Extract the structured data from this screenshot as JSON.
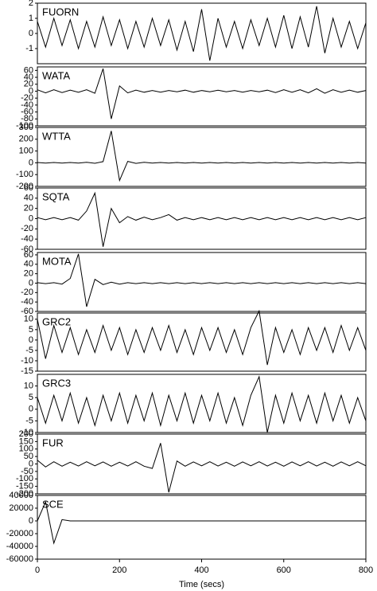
{
  "chart_data": [
    {
      "type": "line",
      "title": "FUORN",
      "xlim": [
        0,
        800
      ],
      "ylim": [
        -2,
        2
      ],
      "yticks": [
        -1,
        0,
        1,
        2
      ],
      "color": "#000000",
      "x": [
        0,
        20,
        40,
        60,
        80,
        100,
        120,
        140,
        160,
        180,
        200,
        220,
        240,
        260,
        280,
        300,
        320,
        340,
        360,
        380,
        400,
        420,
        440,
        460,
        480,
        500,
        520,
        540,
        560,
        580,
        600,
        620,
        640,
        660,
        680,
        700,
        720,
        740,
        760,
        780,
        800
      ],
      "values": [
        0.8,
        -0.9,
        1.0,
        -0.8,
        0.9,
        -1.0,
        0.8,
        -0.9,
        1.1,
        -0.8,
        0.9,
        -1.0,
        0.8,
        -0.9,
        1.0,
        -0.8,
        0.9,
        -1.1,
        0.8,
        -1.2,
        1.6,
        -1.8,
        1.0,
        -0.9,
        0.8,
        -1.0,
        0.9,
        -0.8,
        1.0,
        -0.9,
        1.2,
        -1.0,
        1.1,
        -0.9,
        1.8,
        -1.3,
        1.0,
        -0.9,
        0.8,
        -1.0,
        0.7
      ]
    },
    {
      "type": "line",
      "title": "WATA",
      "xlim": [
        0,
        800
      ],
      "ylim": [
        -100,
        70
      ],
      "yticks": [
        -100,
        -80,
        -60,
        -40,
        -20,
        0,
        20,
        40,
        60
      ],
      "color": "#000000",
      "x": [
        0,
        20,
        40,
        60,
        80,
        100,
        120,
        140,
        160,
        180,
        200,
        220,
        240,
        260,
        280,
        300,
        320,
        340,
        360,
        380,
        400,
        420,
        440,
        460,
        480,
        500,
        520,
        540,
        560,
        580,
        600,
        620,
        640,
        660,
        680,
        700,
        720,
        740,
        760,
        780,
        800
      ],
      "values": [
        4,
        -5,
        4,
        -4,
        3,
        -3,
        4,
        -6,
        65,
        -80,
        15,
        -5,
        3,
        -3,
        2,
        -3,
        2,
        -2,
        3,
        -3,
        2,
        -2,
        3,
        -2,
        2,
        -3,
        2,
        -2,
        3,
        -4,
        4,
        -3,
        4,
        -5,
        7,
        -6,
        4,
        -3,
        3,
        -3,
        2
      ]
    },
    {
      "type": "line",
      "title": "WTTA",
      "xlim": [
        0,
        800
      ],
      "ylim": [
        -200,
        300
      ],
      "yticks": [
        -200,
        -100,
        0,
        100,
        200,
        300
      ],
      "color": "#000000",
      "x": [
        0,
        20,
        40,
        60,
        80,
        100,
        120,
        140,
        160,
        180,
        200,
        220,
        240,
        260,
        280,
        300,
        320,
        340,
        360,
        380,
        400,
        420,
        440,
        460,
        480,
        500,
        520,
        540,
        560,
        580,
        600,
        620,
        640,
        660,
        680,
        700,
        720,
        740,
        760,
        780,
        800
      ],
      "values": [
        3,
        -3,
        3,
        -3,
        3,
        -3,
        4,
        -4,
        10,
        270,
        -150,
        12,
        -5,
        4,
        -3,
        3,
        -3,
        3,
        -3,
        3,
        -3,
        3,
        -3,
        3,
        -3,
        3,
        -3,
        3,
        -3,
        3,
        -3,
        3,
        -3,
        3,
        -3,
        3,
        -3,
        3,
        -3,
        3,
        -3
      ]
    },
    {
      "type": "line",
      "title": "SQTA",
      "xlim": [
        0,
        800
      ],
      "ylim": [
        -60,
        60
      ],
      "yticks": [
        -60,
        -40,
        -20,
        0,
        20,
        40,
        60
      ],
      "color": "#000000",
      "x": [
        0,
        20,
        40,
        60,
        80,
        100,
        120,
        140,
        160,
        180,
        200,
        220,
        240,
        260,
        280,
        300,
        320,
        340,
        360,
        380,
        400,
        420,
        440,
        460,
        480,
        500,
        520,
        540,
        560,
        580,
        600,
        620,
        640,
        660,
        680,
        700,
        720,
        740,
        760,
        780,
        800
      ],
      "values": [
        2,
        -2,
        2,
        -2,
        2,
        -3,
        15,
        50,
        -55,
        20,
        -8,
        4,
        -3,
        3,
        -2,
        2,
        8,
        -3,
        2,
        -2,
        2,
        -2,
        2,
        -2,
        2,
        -2,
        2,
        -2,
        2,
        -2,
        2,
        -2,
        2,
        -2,
        2,
        -2,
        2,
        -2,
        2,
        -2,
        2
      ]
    },
    {
      "type": "line",
      "title": "MOTA",
      "xlim": [
        0,
        800
      ],
      "ylim": [
        -60,
        65
      ],
      "yticks": [
        -60,
        -40,
        -20,
        0,
        20,
        40,
        60
      ],
      "color": "#000000",
      "x": [
        0,
        20,
        40,
        60,
        80,
        100,
        120,
        140,
        160,
        180,
        200,
        220,
        240,
        260,
        280,
        300,
        320,
        340,
        360,
        380,
        400,
        420,
        440,
        460,
        480,
        500,
        520,
        540,
        560,
        580,
        600,
        620,
        640,
        660,
        680,
        700,
        720,
        740,
        760,
        780,
        800
      ],
      "values": [
        1,
        -1,
        1,
        -2,
        10,
        62,
        -50,
        8,
        -3,
        2,
        -2,
        1,
        -1,
        1,
        -1,
        1,
        -1,
        1,
        -1,
        1,
        -1,
        1,
        -1,
        1,
        -1,
        1,
        -1,
        1,
        -1,
        1,
        -1,
        1,
        -1,
        1,
        -1,
        1,
        -1,
        1,
        -1,
        1,
        -1
      ]
    },
    {
      "type": "line",
      "title": "GRC2",
      "xlim": [
        0,
        800
      ],
      "ylim": [
        -15,
        13
      ],
      "yticks": [
        -15,
        -10,
        -5,
        0,
        5,
        10
      ],
      "color": "#000000",
      "x": [
        0,
        20,
        40,
        60,
        80,
        100,
        120,
        140,
        160,
        180,
        200,
        220,
        240,
        260,
        280,
        300,
        320,
        340,
        360,
        380,
        400,
        420,
        440,
        460,
        480,
        500,
        520,
        540,
        560,
        580,
        600,
        620,
        640,
        660,
        680,
        700,
        720,
        740,
        760,
        780,
        800
      ],
      "values": [
        10,
        -9,
        7,
        -6,
        6,
        -7,
        5,
        -6,
        7,
        -5,
        6,
        -7,
        5,
        -6,
        6,
        -5,
        7,
        -6,
        5,
        -7,
        6,
        -5,
        6,
        -6,
        5,
        -7,
        6,
        14,
        -12,
        6,
        -6,
        5,
        -7,
        6,
        -5,
        6,
        -6,
        7,
        -5,
        6,
        -5
      ]
    },
    {
      "type": "line",
      "title": "GRC3",
      "xlim": [
        0,
        800
      ],
      "ylim": [
        -10,
        15
      ],
      "yticks": [
        -10,
        -5,
        0,
        5,
        10
      ],
      "color": "#000000",
      "x": [
        0,
        20,
        40,
        60,
        80,
        100,
        120,
        140,
        160,
        180,
        200,
        220,
        240,
        260,
        280,
        300,
        320,
        340,
        360,
        380,
        400,
        420,
        440,
        460,
        480,
        500,
        520,
        540,
        560,
        580,
        600,
        620,
        640,
        660,
        680,
        700,
        720,
        740,
        760,
        780,
        800
      ],
      "values": [
        5,
        -6,
        6,
        -5,
        7,
        -6,
        5,
        -7,
        6,
        -5,
        7,
        -6,
        6,
        -5,
        7,
        -7,
        6,
        -5,
        7,
        -6,
        6,
        -5,
        7,
        -6,
        5,
        -7,
        6,
        14,
        -10,
        6,
        -6,
        7,
        -5,
        6,
        -6,
        7,
        -5,
        6,
        -6,
        5,
        -5
      ]
    },
    {
      "type": "line",
      "title": "FUR",
      "xlim": [
        0,
        800
      ],
      "ylim": [
        -200,
        200
      ],
      "yticks": [
        -200,
        -150,
        -100,
        -50,
        0,
        50,
        100,
        150,
        200
      ],
      "color": "#000000",
      "x": [
        0,
        20,
        40,
        60,
        80,
        100,
        120,
        140,
        160,
        180,
        200,
        220,
        240,
        260,
        280,
        300,
        320,
        340,
        360,
        380,
        400,
        420,
        440,
        460,
        480,
        500,
        520,
        540,
        560,
        580,
        600,
        620,
        640,
        660,
        680,
        700,
        720,
        740,
        760,
        780,
        800
      ],
      "values": [
        25,
        -20,
        15,
        -15,
        12,
        -14,
        15,
        -12,
        14,
        -15,
        12,
        -14,
        15,
        -15,
        -30,
        140,
        -190,
        20,
        -15,
        14,
        -12,
        15,
        -14,
        12,
        -15,
        14,
        -12,
        15,
        -14,
        12,
        -15,
        14,
        -12,
        15,
        -14,
        12,
        -15,
        14,
        -12,
        15,
        -12
      ]
    },
    {
      "type": "line",
      "title": "SCE",
      "xlim": [
        0,
        800
      ],
      "ylim": [
        -60000,
        40000
      ],
      "yticks": [
        -60000,
        -40000,
        -20000,
        0,
        20000,
        40000
      ],
      "xticks": [
        0,
        200,
        400,
        600,
        800
      ],
      "x_label": "Time (secs)",
      "color": "#000000",
      "x": [
        0,
        20,
        40,
        60,
        80,
        100,
        120,
        140,
        160,
        180,
        200,
        220,
        240,
        260,
        280,
        300,
        320,
        340,
        360,
        380,
        400,
        420,
        440,
        460,
        480,
        500,
        520,
        540,
        560,
        580,
        600,
        620,
        640,
        660,
        680,
        700,
        720,
        740,
        760,
        780,
        800
      ],
      "values": [
        0,
        30000,
        -35000,
        2000,
        0,
        0,
        0,
        0,
        0,
        0,
        0,
        0,
        0,
        0,
        0,
        0,
        0,
        0,
        0,
        0,
        0,
        0,
        0,
        0,
        0,
        0,
        0,
        0,
        0,
        0,
        0,
        0,
        0,
        0,
        0,
        0,
        0,
        0,
        0,
        0,
        0
      ]
    }
  ]
}
